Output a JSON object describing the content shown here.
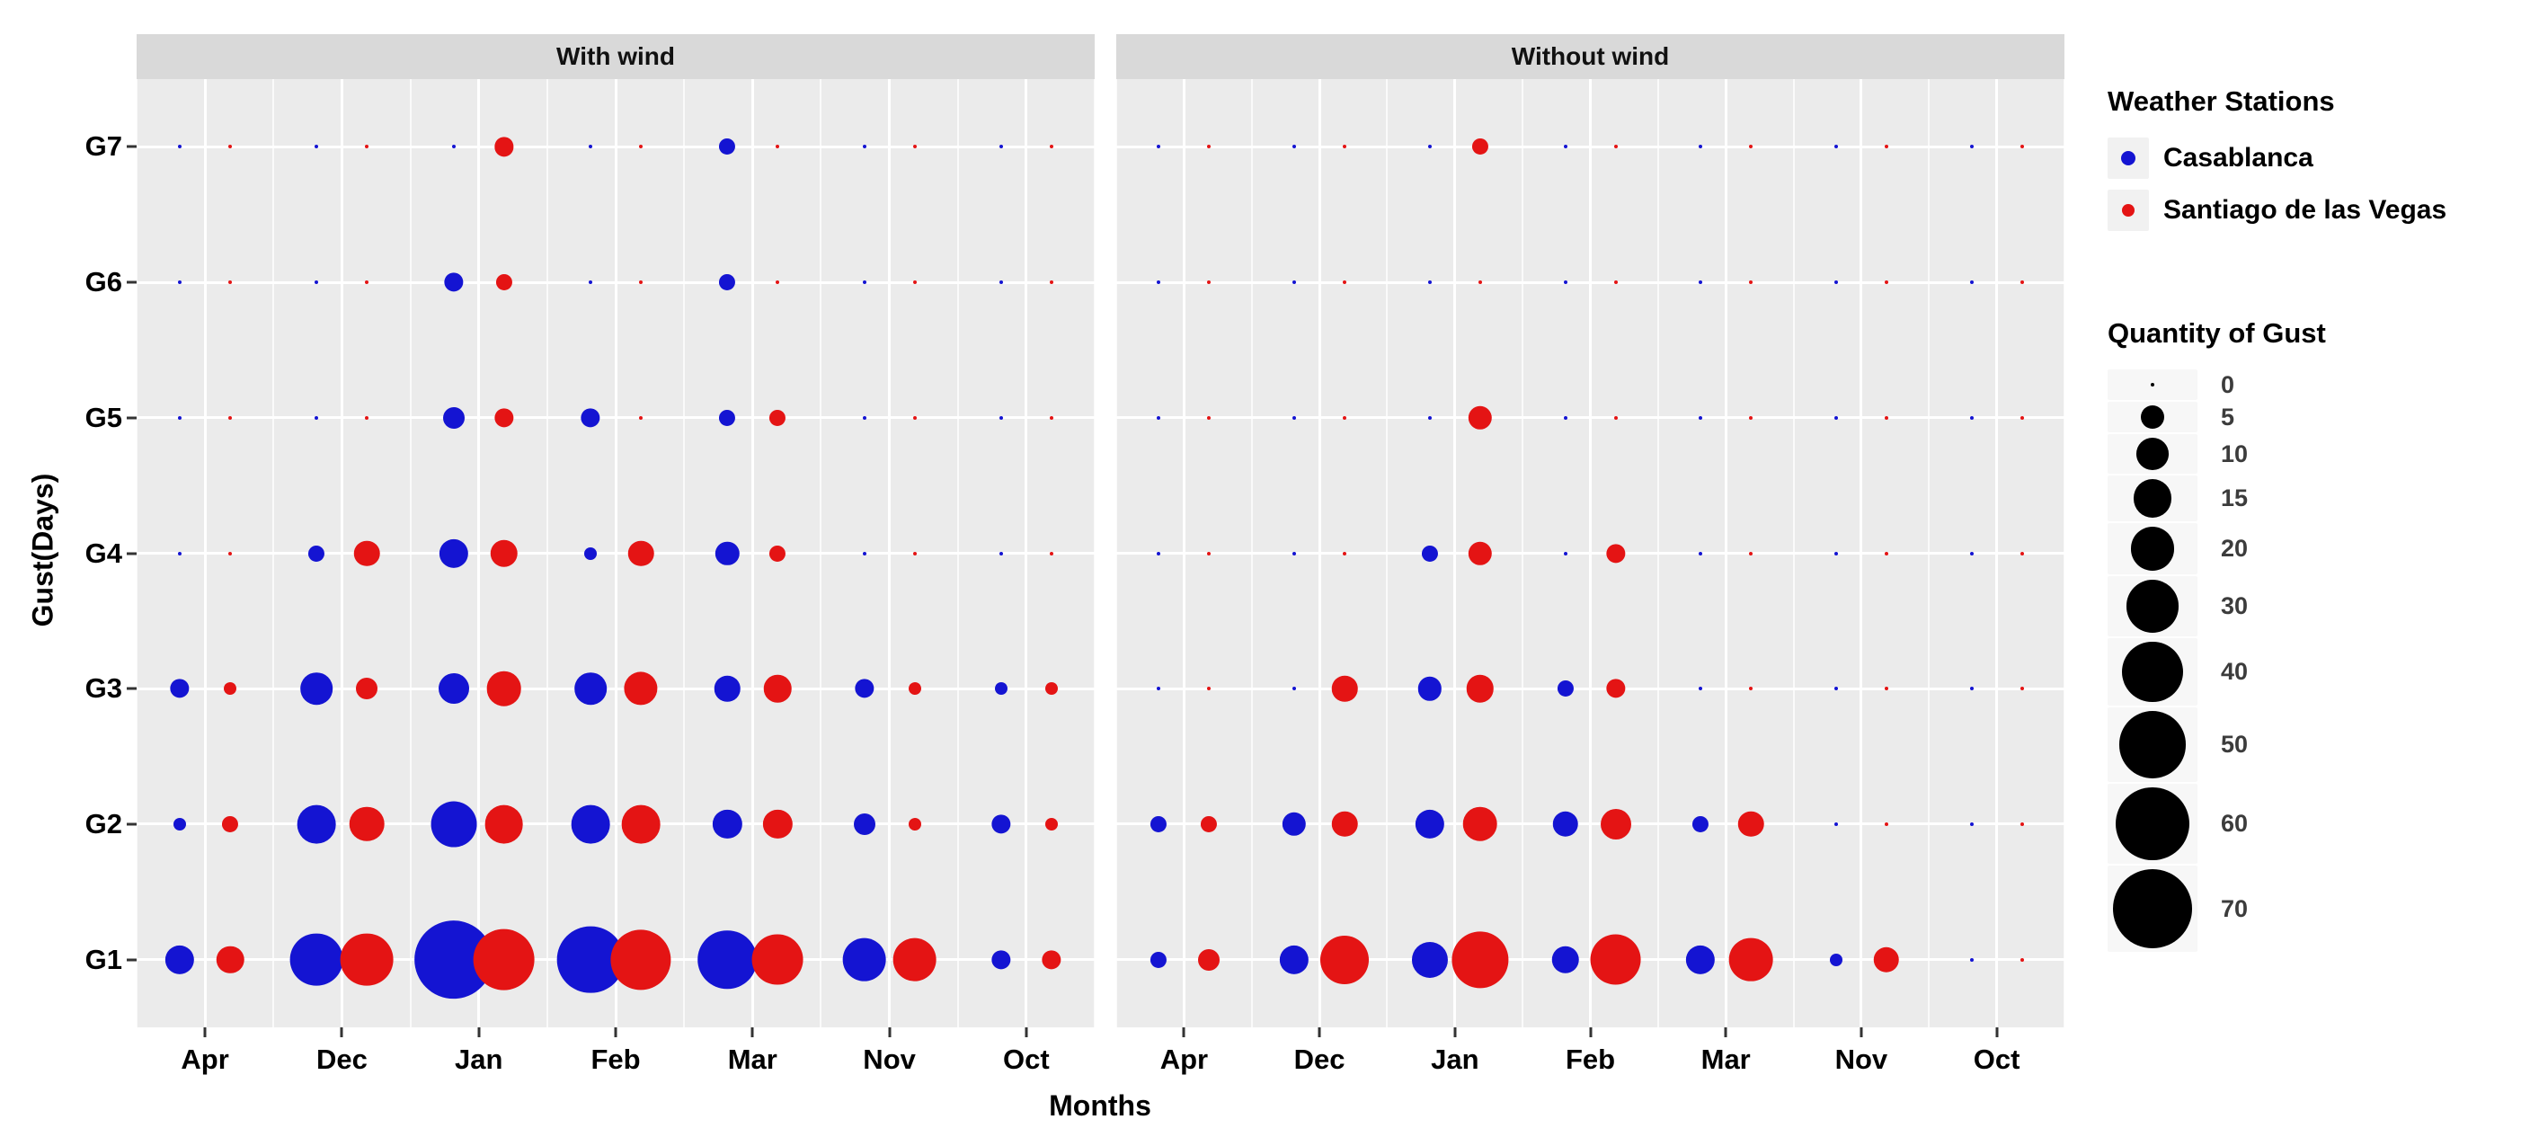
{
  "chart_data": {
    "type": "scatter",
    "facets": [
      {
        "label": "With wind"
      },
      {
        "label": "Without wind"
      }
    ],
    "months": [
      "Apr",
      "Dec",
      "Jan",
      "Feb",
      "Mar",
      "Nov",
      "Oct"
    ],
    "gust_levels": [
      "G1",
      "G2",
      "G3",
      "G4",
      "G5",
      "G6",
      "G7"
    ],
    "xlabel": "Months",
    "ylabel": "Gust(Days)",
    "panel_bg_color": "#ebebeb",
    "strip_bg_color": "#d9d9d9",
    "stations_legend": {
      "title": "Weather Stations",
      "items": [
        {
          "name": "Casablanca",
          "color": "#1414d2"
        },
        {
          "name": "Santiago de las Vegas",
          "color": "#e41414"
        }
      ]
    },
    "size_legend": {
      "title": "Quantity of Gust",
      "values": [
        0,
        5,
        10,
        15,
        20,
        30,
        40,
        50,
        60,
        70
      ]
    },
    "values": {
      "With wind": {
        "Casablanca": {
          "G1": [
            8,
            30,
            70,
            50,
            38,
            20,
            3
          ],
          "G2": [
            1,
            15,
            22,
            15,
            8,
            4,
            3
          ],
          "G3": [
            3,
            10,
            9,
            10,
            6,
            3,
            1
          ],
          "G4": [
            0,
            2,
            8,
            1,
            5,
            0,
            0
          ],
          "G5": [
            0,
            0,
            4,
            3,
            2,
            0,
            0
          ],
          "G6": [
            0,
            0,
            3,
            0,
            2,
            0,
            0
          ],
          "G7": [
            0,
            0,
            0,
            0,
            2,
            0,
            0
          ]
        },
        "Santiago de las Vegas": {
          "G1": [
            7,
            30,
            42,
            40,
            28,
            20,
            3
          ],
          "G2": [
            2,
            12,
            15,
            15,
            8,
            1,
            1
          ],
          "G3": [
            1,
            4,
            12,
            11,
            7,
            1,
            1
          ],
          "G4": [
            0,
            6,
            7,
            6,
            2,
            0,
            0
          ],
          "G5": [
            0,
            0,
            3,
            0,
            2,
            0,
            0
          ],
          "G6": [
            0,
            0,
            2,
            0,
            0,
            0,
            0
          ],
          "G7": [
            0,
            0,
            3,
            0,
            0,
            0,
            0
          ]
        }
      },
      "Without wind": {
        "Casablanca": {
          "G1": [
            2,
            8,
            13,
            7,
            8,
            1,
            0
          ],
          "G2": [
            2,
            5,
            8,
            6,
            2,
            0,
            0
          ],
          "G3": [
            0,
            0,
            5,
            2,
            0,
            0,
            0
          ],
          "G4": [
            0,
            0,
            2,
            0,
            0,
            0,
            0
          ],
          "G5": [
            0,
            0,
            0,
            0,
            0,
            0,
            0
          ],
          "G6": [
            0,
            0,
            0,
            0,
            0,
            0,
            0
          ],
          "G7": [
            0,
            0,
            0,
            0,
            0,
            0,
            0
          ]
        },
        "Santiago de las Vegas": {
          "G1": [
            4,
            25,
            35,
            28,
            20,
            6,
            0
          ],
          "G2": [
            2,
            6,
            12,
            9,
            6,
            0,
            0
          ],
          "G3": [
            0,
            6,
            7,
            3,
            0,
            0,
            0
          ],
          "G4": [
            0,
            0,
            5,
            3,
            0,
            0,
            0
          ],
          "G5": [
            0,
            0,
            5,
            0,
            0,
            0,
            0
          ],
          "G6": [
            0,
            0,
            0,
            0,
            0,
            0,
            0
          ],
          "G7": [
            0,
            0,
            2,
            0,
            0,
            0,
            0
          ]
        }
      }
    }
  }
}
